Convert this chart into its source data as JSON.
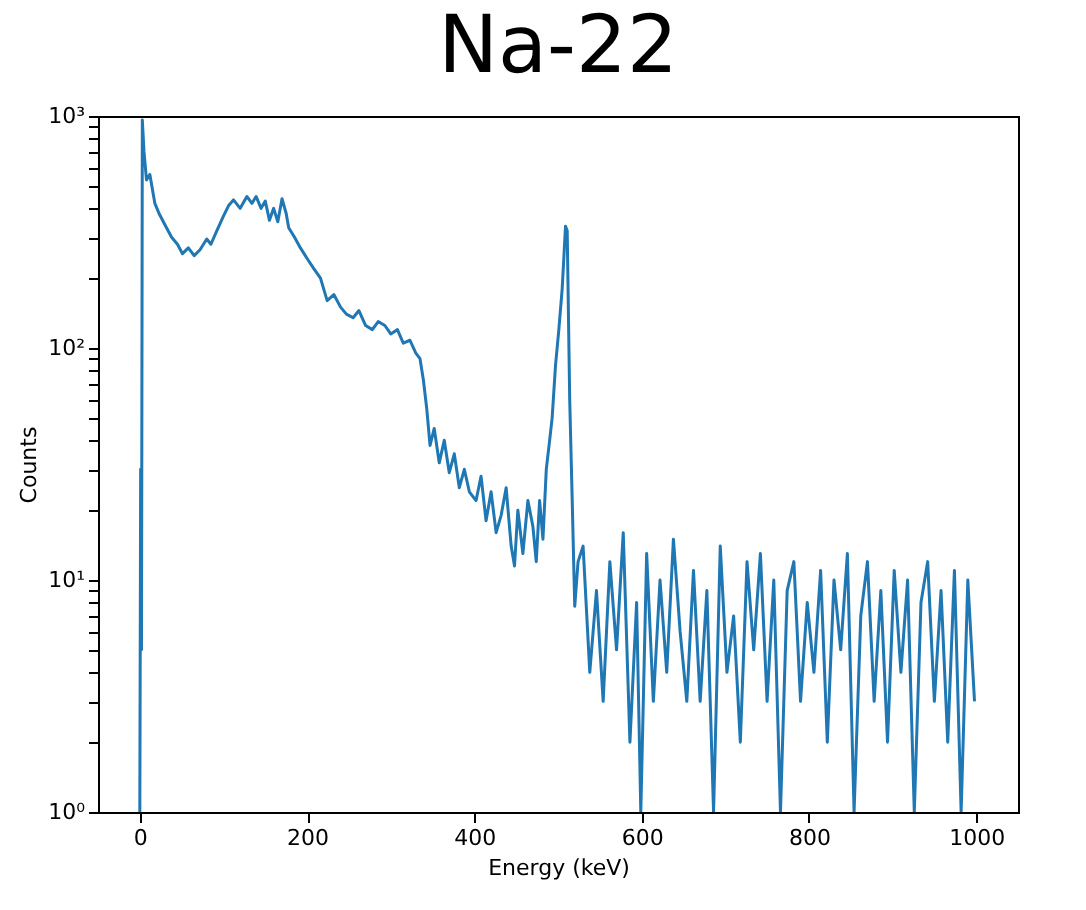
{
  "chart_data": {
    "type": "line",
    "title": "Na-22",
    "xlabel": "Energy (keV)",
    "ylabel": "Counts",
    "log": "y",
    "grid": false,
    "marker": "none",
    "line_style": "solid",
    "xlim": [
      -50,
      1050
    ],
    "xticks": [
      0,
      200,
      400,
      600,
      800,
      1000
    ],
    "ylim": [
      1,
      1000
    ],
    "yticks": [
      {
        "value": 1,
        "label": "10⁰"
      },
      {
        "value": 2,
        "label": null
      },
      {
        "value": 3,
        "label": null
      },
      {
        "value": 4,
        "label": null
      },
      {
        "value": 5,
        "label": null
      },
      {
        "value": 6,
        "label": null
      },
      {
        "value": 7,
        "label": null
      },
      {
        "value": 8,
        "label": null
      },
      {
        "value": 9,
        "label": null
      },
      {
        "value": 10,
        "label": "10¹"
      },
      {
        "value": 20,
        "label": null
      },
      {
        "value": 30,
        "label": null
      },
      {
        "value": 40,
        "label": null
      },
      {
        "value": 50,
        "label": null
      },
      {
        "value": 60,
        "label": null
      },
      {
        "value": 70,
        "label": null
      },
      {
        "value": 80,
        "label": null
      },
      {
        "value": 90,
        "label": null
      },
      {
        "value": 100,
        "label": "10²"
      },
      {
        "value": 200,
        "label": null
      },
      {
        "value": 300,
        "label": null
      },
      {
        "value": 400,
        "label": null
      },
      {
        "value": 500,
        "label": null
      },
      {
        "value": 600,
        "label": null
      },
      {
        "value": 700,
        "label": null
      },
      {
        "value": 800,
        "label": null
      },
      {
        "value": 900,
        "label": null
      },
      {
        "value": 1000,
        "label": "10³"
      }
    ],
    "series": [
      {
        "color": "#1f77b4",
        "x": [
          0,
          1,
          2,
          3,
          5,
          8,
          12,
          18,
          23,
          30,
          38,
          45,
          51,
          58,
          65,
          72,
          80,
          85,
          92,
          100,
          106,
          112,
          120,
          128,
          134,
          139,
          145,
          150,
          155,
          160,
          165,
          170,
          175,
          178,
          185,
          192,
          201,
          208,
          216,
          224,
          232,
          240,
          247,
          255,
          262,
          270,
          278,
          285,
          293,
          300,
          308,
          315,
          323,
          330,
          335,
          339,
          343,
          347,
          352,
          358,
          364,
          370,
          376,
          382,
          388,
          394,
          402,
          408,
          414,
          420,
          426,
          432,
          438,
          444,
          448,
          452,
          458,
          464,
          470,
          474,
          478,
          482,
          486,
          490,
          493,
          497,
          501,
          505,
          509,
          511,
          514,
          517,
          520,
          524,
          530,
          538,
          546,
          554,
          562,
          570,
          578,
          586,
          594,
          599,
          606,
          614,
          622,
          630,
          638,
          646,
          654,
          662,
          670,
          678,
          686,
          694,
          702,
          710,
          718,
          726,
          734,
          742,
          750,
          758,
          766,
          774,
          782,
          790,
          798,
          806,
          814,
          822,
          830,
          838,
          846,
          854,
          862,
          870,
          878,
          886,
          894,
          902,
          910,
          918,
          926,
          934,
          942,
          950,
          958,
          966,
          974,
          982,
          990,
          998
        ],
        "values": [
          1,
          30,
          5,
          960,
          700,
          530,
          560,
          420,
          380,
          340,
          300,
          280,
          255,
          270,
          250,
          265,
          295,
          280,
          320,
          370,
          410,
          435,
          400,
          450,
          420,
          450,
          400,
          430,
          355,
          400,
          350,
          440,
          380,
          330,
          300,
          270,
          240,
          220,
          200,
          160,
          170,
          150,
          140,
          135,
          145,
          125,
          120,
          130,
          125,
          115,
          120,
          105,
          108,
          95,
          90,
          73,
          55,
          38,
          45,
          32,
          40,
          29,
          35,
          25,
          30,
          24,
          22,
          28,
          18,
          24,
          16,
          19,
          25,
          14,
          11.5,
          20,
          13,
          22,
          17,
          12,
          22,
          15,
          30,
          40,
          50,
          84,
          120,
          180,
          335,
          320,
          60,
          22,
          7.7,
          12,
          14,
          4,
          9,
          3,
          12,
          5,
          16,
          2,
          8,
          1,
          13,
          3,
          10,
          4,
          15,
          6,
          3,
          11,
          3,
          9,
          1,
          14,
          4,
          7,
          2,
          12,
          5,
          13,
          3,
          10,
          1,
          9,
          12,
          3,
          8,
          4,
          11,
          2,
          10,
          5,
          13,
          1,
          7,
          12,
          3,
          9,
          2,
          11,
          4,
          10,
          1,
          8,
          12,
          3,
          9,
          2,
          11,
          1,
          10,
          3
        ]
      }
    ]
  }
}
